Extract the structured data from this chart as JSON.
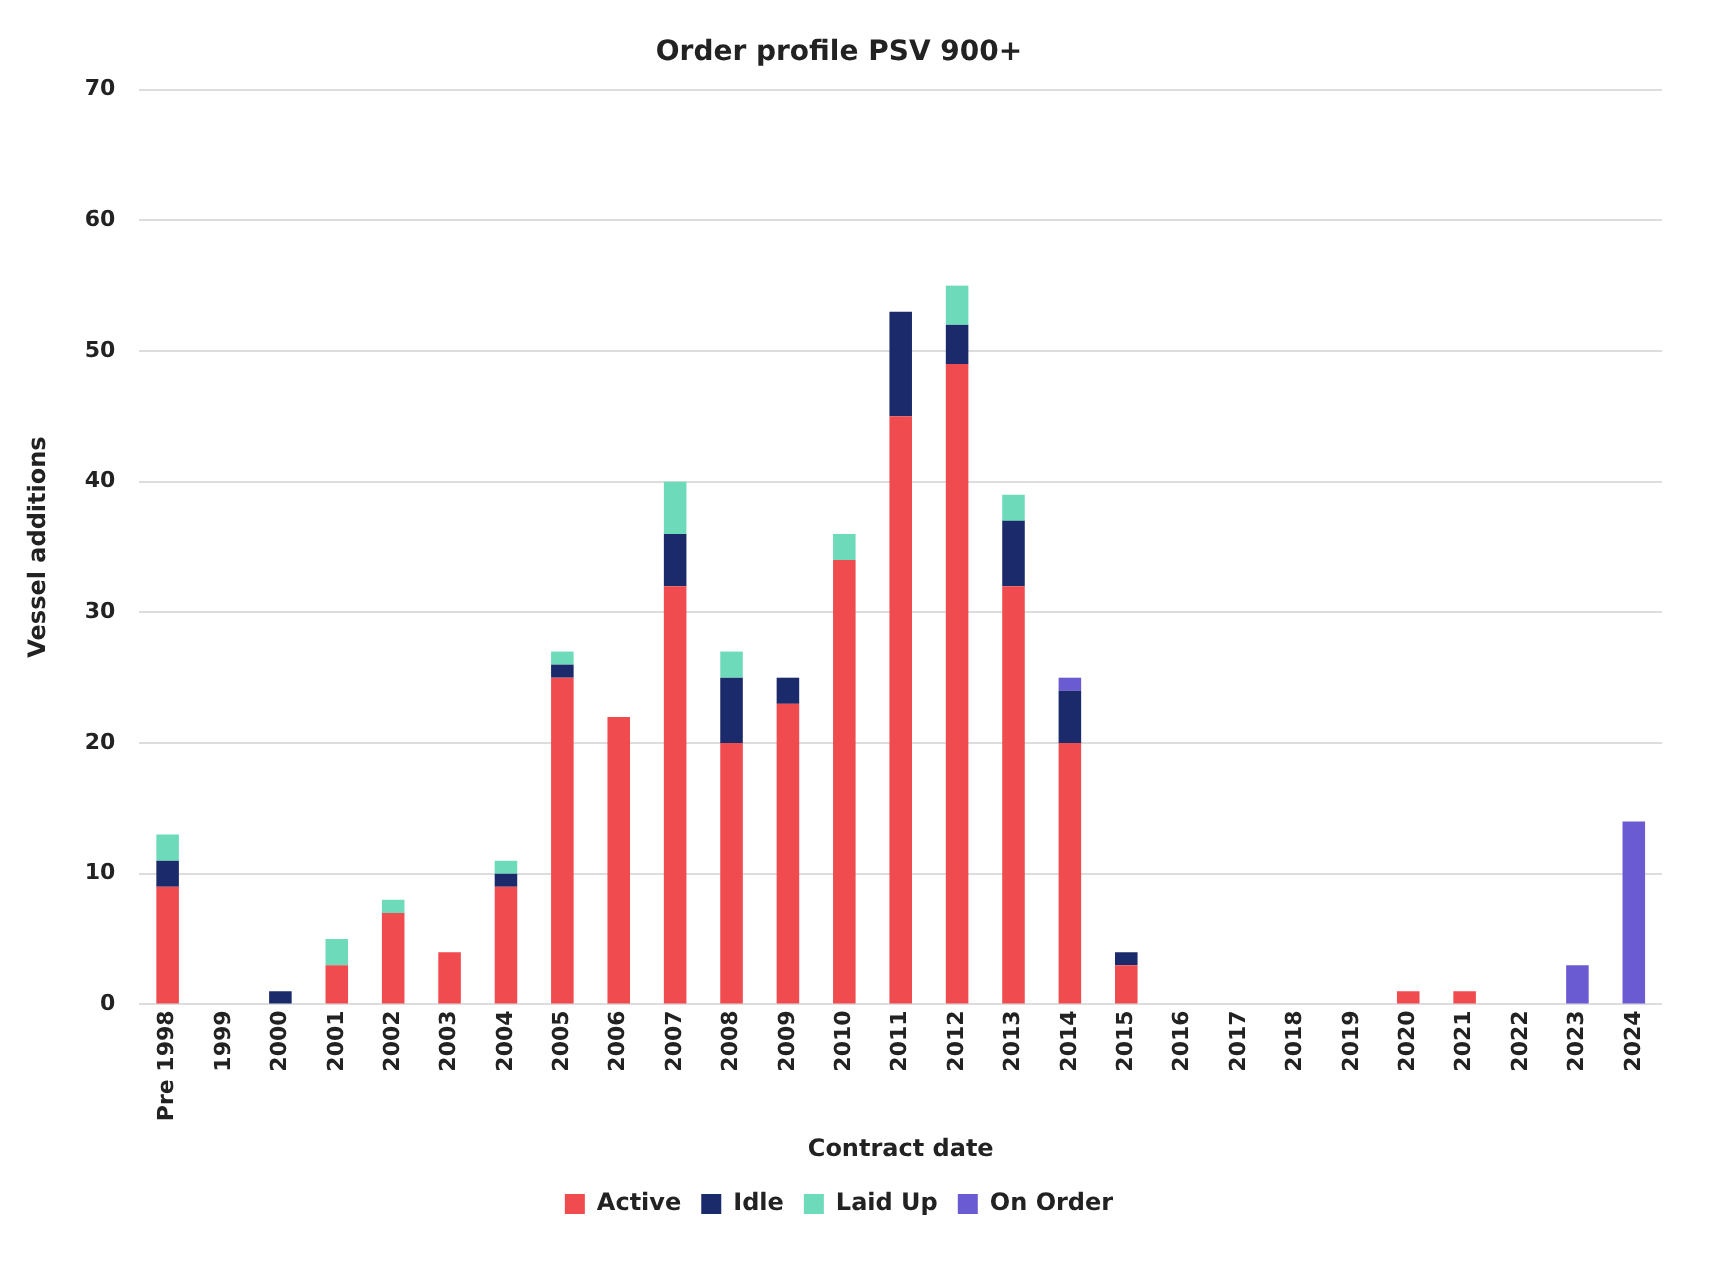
{
  "chart_data": {
    "type": "bar",
    "title": "Order profile PSV 900+",
    "xlabel": "Contract date",
    "ylabel": "Vessel additions",
    "categories": [
      "Pre 1998",
      "1999",
      "2000",
      "2001",
      "2002",
      "2003",
      "2004",
      "2005",
      "2006",
      "2007",
      "2008",
      "2009",
      "2010",
      "2011",
      "2012",
      "2013",
      "2014",
      "2015",
      "2016",
      "2017",
      "2018",
      "2019",
      "2020",
      "2021",
      "2022",
      "2023",
      "2024"
    ],
    "stacked": true,
    "series": [
      {
        "name": "Active",
        "color": "#f04b4f",
        "values": [
          9,
          0,
          0,
          3,
          7,
          4,
          9,
          25,
          22,
          32,
          20,
          23,
          34,
          45,
          49,
          32,
          20,
          3,
          0,
          0,
          0,
          0,
          1,
          1,
          0,
          0,
          0
        ]
      },
      {
        "name": "Idle",
        "color": "#1b2a6b",
        "values": [
          2,
          0,
          1,
          0,
          0,
          0,
          1,
          1,
          0,
          4,
          5,
          2,
          0,
          8,
          3,
          5,
          4,
          1,
          0,
          0,
          0,
          0,
          0,
          0,
          0,
          0,
          0
        ]
      },
      {
        "name": "Laid Up",
        "color": "#6ddbb9",
        "values": [
          2,
          0,
          0,
          2,
          1,
          0,
          1,
          1,
          0,
          4,
          2,
          0,
          2,
          0,
          3,
          2,
          0,
          0,
          0,
          0,
          0,
          0,
          0,
          0,
          0,
          0,
          0
        ]
      },
      {
        "name": "On Order",
        "color": "#6b5bd2",
        "values": [
          0,
          0,
          0,
          0,
          0,
          0,
          0,
          0,
          0,
          0,
          0,
          0,
          0,
          0,
          0,
          0,
          1,
          0,
          0,
          0,
          0,
          0,
          0,
          0,
          0,
          3,
          14
        ]
      }
    ],
    "ylim": [
      0,
      70
    ],
    "yticks": [
      0,
      10,
      20,
      30,
      40,
      50,
      60,
      70
    ],
    "grid": "y",
    "legend": "bottom"
  }
}
